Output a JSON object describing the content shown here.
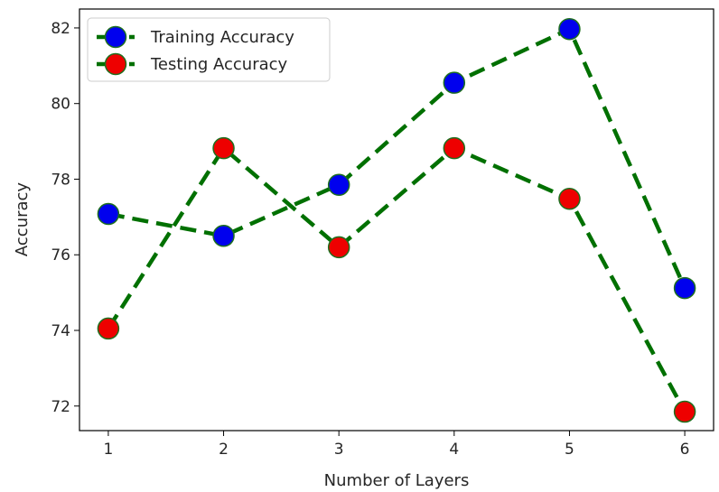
{
  "chart_data": {
    "type": "line",
    "title": "",
    "xlabel": "Number of Layers",
    "ylabel": "Accuracy",
    "x": [
      1,
      2,
      3,
      4,
      5,
      6
    ],
    "xlim": [
      0.75,
      6.25
    ],
    "ylim": [
      71.35,
      82.5
    ],
    "xticks": [
      1,
      2,
      3,
      4,
      5,
      6
    ],
    "yticks": [
      72,
      74,
      76,
      78,
      80,
      82
    ],
    "grid": false,
    "legend_position": "top-left",
    "line_color": "#007000",
    "line_style": "dashed",
    "series": [
      {
        "name": "Training Accuracy",
        "marker_color": "#0000ee",
        "values": [
          77.08,
          76.5,
          77.85,
          80.55,
          81.97,
          75.12
        ]
      },
      {
        "name": "Testing Accuracy",
        "marker_color": "#ee0000",
        "values": [
          74.05,
          78.82,
          76.2,
          78.82,
          77.48,
          71.85
        ]
      }
    ]
  }
}
